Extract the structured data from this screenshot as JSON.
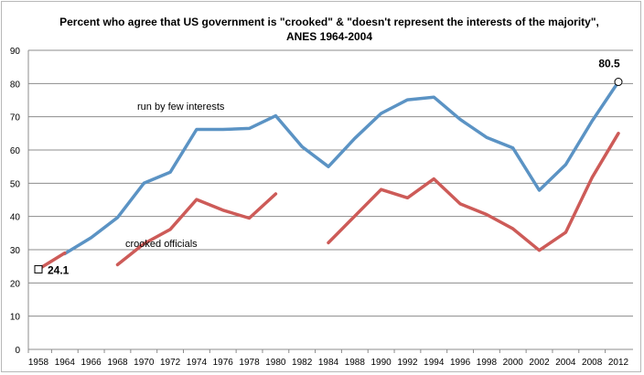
{
  "chart_data": {
    "type": "line",
    "title_line1": "Percent who agree that US government is \"crooked\" & \"doesn't represent the interests of the majority\",",
    "title_line2": "ANES 1964-2004",
    "categories": [
      "1958",
      "1964",
      "1966",
      "1968",
      "1970",
      "1972",
      "1974",
      "1976",
      "1978",
      "1980",
      "1982",
      "1984",
      "1988",
      "1990",
      "1992",
      "1994",
      "1996",
      "1998",
      "2000",
      "2002",
      "2004",
      "2008",
      "2012"
    ],
    "ylim": [
      0,
      90
    ],
    "yticks": [
      0,
      10,
      20,
      30,
      40,
      50,
      60,
      70,
      80,
      90
    ],
    "grid": true,
    "series": [
      {
        "name": "run by few interests",
        "color": "#5b93c4",
        "values": [
          null,
          28.8,
          33.6,
          39.7,
          50.0,
          53.3,
          66.2,
          66.2,
          66.5,
          70.3,
          61.0,
          55.0,
          63.5,
          71.0,
          75.1,
          75.9,
          69.2,
          63.8,
          60.6,
          47.9,
          55.6,
          68.7,
          80.5
        ]
      },
      {
        "name": "crooked officials",
        "color": "#cd5b58",
        "values": [
          24.1,
          29.0,
          null,
          25.5,
          31.8,
          36.1,
          45.1,
          41.9,
          39.5,
          46.8,
          null,
          32.1,
          40.1,
          48.1,
          45.6,
          51.3,
          43.8,
          40.6,
          36.3,
          29.8,
          35.2,
          51.7,
          65.0
        ]
      }
    ],
    "annotations": {
      "start_label": "24.1",
      "end_label": "80.5",
      "series_label_blue": "run by few interests",
      "series_label_red": "crooked officials"
    }
  }
}
